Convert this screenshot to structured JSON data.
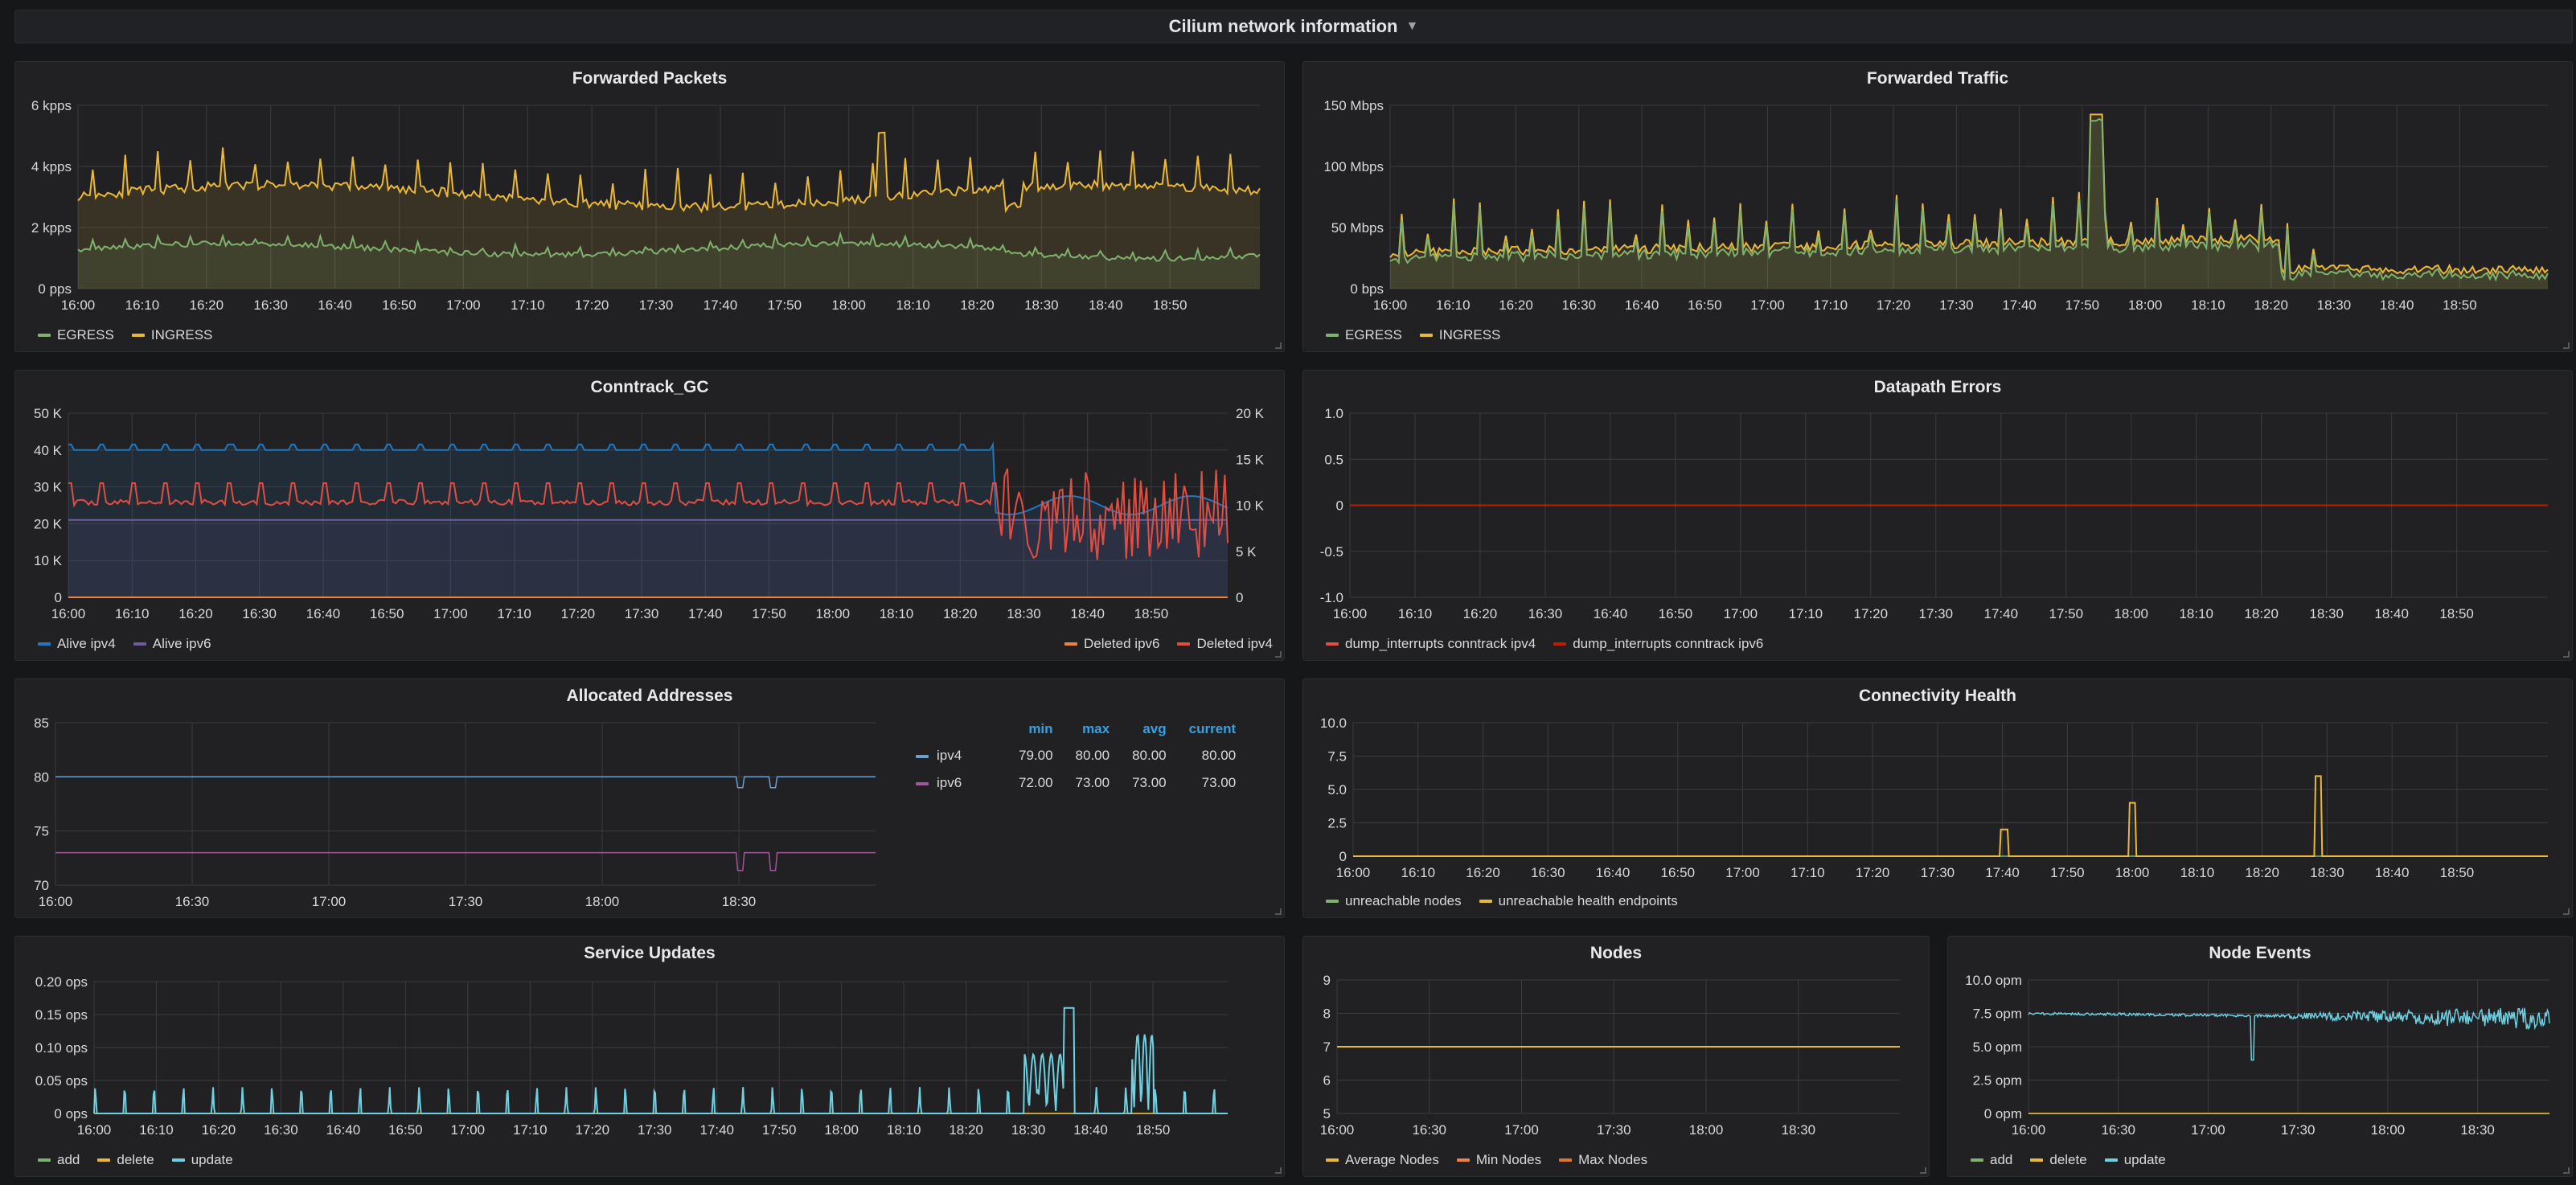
{
  "row": {
    "title": "Cilium network information"
  },
  "colors": {
    "green": "#7eb26d",
    "yellow": "#eab839",
    "blue": "#1f78c1",
    "purple": "#705da0",
    "red": "#e24d42",
    "orange": "#ef843c",
    "cyan": "#6ed0e0",
    "darkred": "#bf1b00",
    "violet": "#a0589a"
  },
  "panels": [
    {
      "id": "fp",
      "title": "Forwarded Packets",
      "box": "x",
      "yticks": [
        "0 pps",
        "2 kpps",
        "4 kpps",
        "6 kpps"
      ],
      "ymax": 6000,
      "xticks": [
        "16:00",
        "16:10",
        "16:20",
        "16:30",
        "16:40",
        "16:50",
        "17:00",
        "17:10",
        "17:20",
        "17:30",
        "17:40",
        "17:50",
        "18:00",
        "18:10",
        "18:20",
        "18:30",
        "18:40",
        "18:50"
      ],
      "legend": [
        {
          "label": "EGRESS",
          "color": "#7eb26d"
        },
        {
          "label": "INGRESS",
          "color": "#eab839"
        }
      ]
    },
    {
      "id": "ft",
      "title": "Forwarded Traffic",
      "yticks": [
        "0 bps",
        "50 Mbps",
        "100 Mbps",
        "150 Mbps"
      ],
      "xticks": [
        "16:00",
        "16:10",
        "16:20",
        "16:30",
        "16:40",
        "16:50",
        "17:00",
        "17:10",
        "17:20",
        "17:30",
        "17:40",
        "17:50",
        "18:00",
        "18:10",
        "18:20",
        "18:30",
        "18:40",
        "18:50"
      ],
      "legend": [
        {
          "label": "EGRESS",
          "color": "#7eb26d"
        },
        {
          "label": "INGRESS",
          "color": "#eab839"
        }
      ]
    },
    {
      "id": "cg",
      "title": "Conntrack_GC",
      "yticks": [
        "0",
        "10 K",
        "20 K",
        "30 K",
        "40 K",
        "50 K"
      ],
      "y2ticks": [
        "0",
        "5 K",
        "10 K",
        "15 K",
        "20 K"
      ],
      "xticks": [
        "16:00",
        "16:10",
        "16:20",
        "16:30",
        "16:40",
        "16:50",
        "17:00",
        "17:10",
        "17:20",
        "17:30",
        "17:40",
        "17:50",
        "18:00",
        "18:10",
        "18:20",
        "18:30",
        "18:40",
        "18:50"
      ],
      "legend": [
        {
          "label": "Alive ipv4",
          "color": "#1f78c1"
        },
        {
          "label": "Alive ipv6",
          "color": "#705da0"
        }
      ],
      "legend_right": [
        {
          "label": "Deleted ipv6",
          "color": "#ef843c"
        },
        {
          "label": "Deleted ipv4",
          "color": "#e24d42"
        }
      ]
    },
    {
      "id": "de",
      "title": "Datapath Errors",
      "yticks": [
        "-1.0",
        "-0.5",
        "0",
        "0.5",
        "1.0"
      ],
      "xticks": [
        "16:00",
        "16:10",
        "16:20",
        "16:30",
        "16:40",
        "16:50",
        "17:00",
        "17:10",
        "17:20",
        "17:30",
        "17:40",
        "17:50",
        "18:00",
        "18:10",
        "18:20",
        "18:30",
        "18:40",
        "18:50"
      ],
      "legend": [
        {
          "label": "dump_interrupts conntrack ipv4",
          "color": "#e24d42"
        },
        {
          "label": "dump_interrupts conntrack ipv6",
          "color": "#bf1b00"
        }
      ]
    },
    {
      "id": "aa",
      "title": "Allocated Addresses",
      "yticks": [
        "70",
        "75",
        "80",
        "85"
      ],
      "xticks": [
        "16:00",
        "16:30",
        "17:00",
        "17:30",
        "18:00",
        "18:30"
      ],
      "table": {
        "headers": [
          "min",
          "max",
          "avg",
          "current"
        ],
        "rows": [
          {
            "name": "ipv4",
            "color": "#6d9fd3",
            "values": [
              "79.00",
              "80.00",
              "80.00",
              "80.00"
            ]
          },
          {
            "name": "ipv6",
            "color": "#a0589a",
            "values": [
              "72.00",
              "73.00",
              "73.00",
              "73.00"
            ]
          }
        ]
      }
    },
    {
      "id": "ch",
      "title": "Connectivity Health",
      "yticks": [
        "0",
        "2.5",
        "5.0",
        "7.5",
        "10.0"
      ],
      "xticks": [
        "16:00",
        "16:10",
        "16:20",
        "16:30",
        "16:40",
        "16:50",
        "17:00",
        "17:10",
        "17:20",
        "17:30",
        "17:40",
        "17:50",
        "18:00",
        "18:10",
        "18:20",
        "18:30",
        "18:40",
        "18:50"
      ],
      "legend": [
        {
          "label": "unreachable nodes",
          "color": "#7eb26d"
        },
        {
          "label": "unreachable health endpoints",
          "color": "#eab839"
        }
      ]
    },
    {
      "id": "su",
      "title": "Service Updates",
      "yticks": [
        "0 ops",
        "0.05 ops",
        "0.10 ops",
        "0.15 ops",
        "0.20 ops"
      ],
      "xticks": [
        "16:00",
        "16:10",
        "16:20",
        "16:30",
        "16:40",
        "16:50",
        "17:00",
        "17:10",
        "17:20",
        "17:30",
        "17:40",
        "17:50",
        "18:00",
        "18:10",
        "18:20",
        "18:30",
        "18:40",
        "18:50"
      ],
      "legend": [
        {
          "label": "add",
          "color": "#7eb26d"
        },
        {
          "label": "delete",
          "color": "#eab839"
        },
        {
          "label": "update",
          "color": "#6ed0e0"
        }
      ]
    },
    {
      "id": "nd",
      "title": "Nodes",
      "yticks": [
        "5",
        "6",
        "7",
        "8",
        "9"
      ],
      "xticks": [
        "16:00",
        "16:30",
        "17:00",
        "17:30",
        "18:00",
        "18:30"
      ],
      "legend": [
        {
          "label": "Average Nodes",
          "color": "#eab839"
        },
        {
          "label": "Min Nodes",
          "color": "#ef843c"
        },
        {
          "label": "Max Nodes",
          "color": "#e0752d"
        }
      ]
    },
    {
      "id": "ne",
      "title": "Node Events",
      "yticks": [
        "0 opm",
        "2.5 opm",
        "5.0 opm",
        "7.5 opm",
        "10.0 opm"
      ],
      "xticks": [
        "16:00",
        "16:30",
        "17:00",
        "17:30",
        "18:00",
        "18:30"
      ],
      "legend": [
        {
          "label": "add",
          "color": "#7eb26d"
        },
        {
          "label": "delete",
          "color": "#eab839"
        },
        {
          "label": "update",
          "color": "#6ed0e0"
        }
      ]
    }
  ]
}
